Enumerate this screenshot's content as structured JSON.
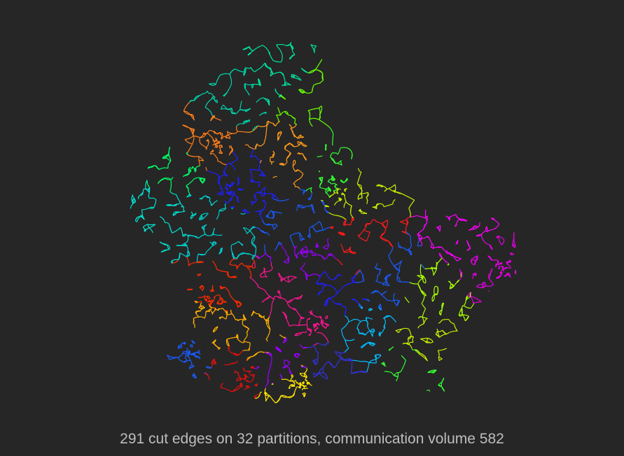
{
  "caption": "291 cut edges on 32 partitions, communication volume 582",
  "colors": {
    "background": "#262626",
    "caption_text": "#bdbdbd"
  },
  "partition_palette": [
    "#00e5a0",
    "#ff7f1a",
    "#00ff66",
    "#c8f000",
    "#ff00ff",
    "#2020ff",
    "#00e0d0",
    "#ff1a1a",
    "#9900ff",
    "#ff1493",
    "#00bfff",
    "#ff2a00",
    "#ffb000",
    "#1a5cff",
    "#ffe600",
    "#66ff00",
    "#00d4aa",
    "#ff6a00",
    "#33ff33",
    "#aaff00",
    "#e000e0",
    "#3333dd",
    "#00cccc",
    "#e01010"
  ],
  "diagram": {
    "type": "partitioned-road-network",
    "partition_count": 32,
    "cut_edges": 291,
    "communication_volume": 582
  }
}
